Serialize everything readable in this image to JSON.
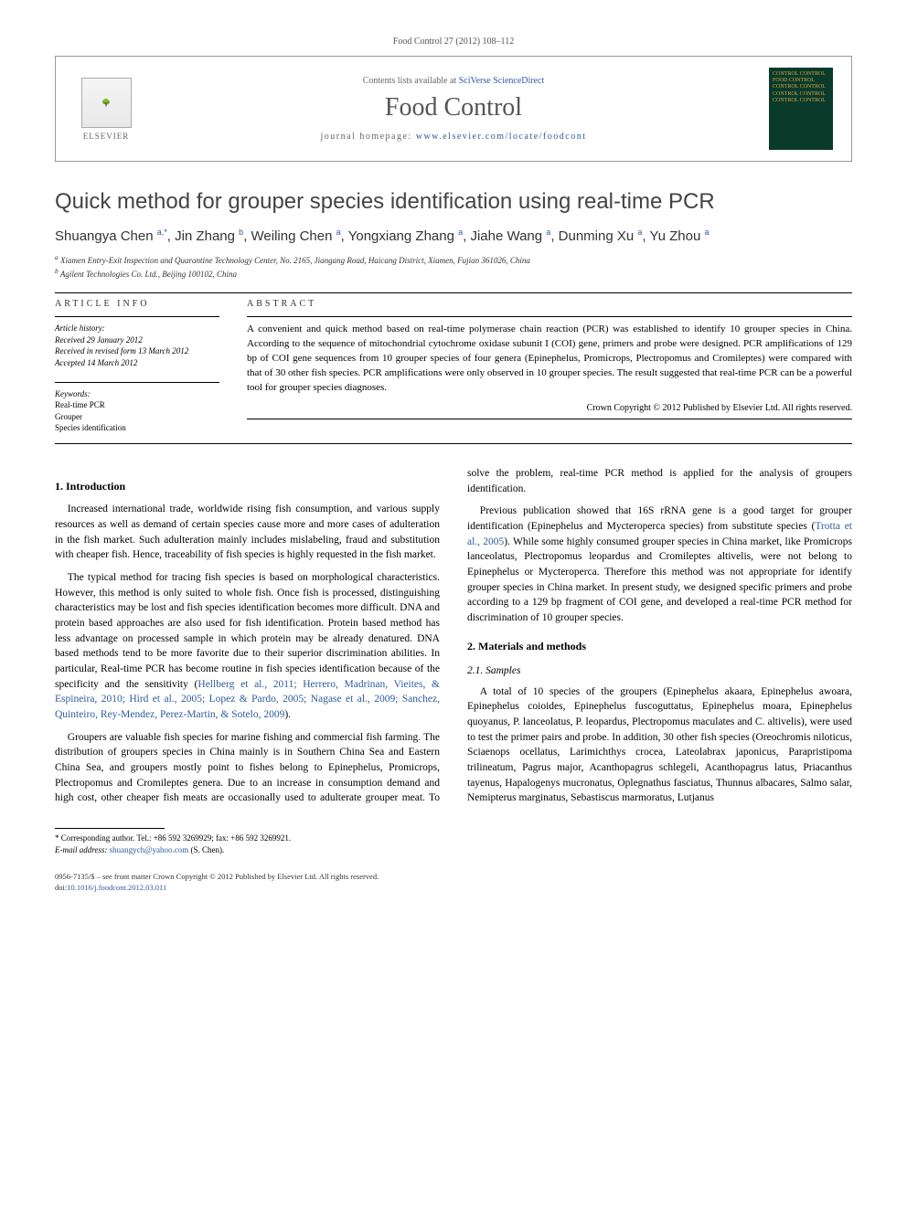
{
  "citation": "Food Control 27 (2012) 108–112",
  "header": {
    "contents_prefix": "Contents lists available at ",
    "contents_link": "SciVerse ScienceDirect",
    "journal": "Food Control",
    "homepage_prefix": "journal homepage: ",
    "homepage_url": "www.elsevier.com/locate/foodcont",
    "elsevier": "ELSEVIER",
    "cover_text": "CONTROL CONTROL FOOD CONTROL CONTROL CONTROL CONTROL CONTROL CONTROL CONTROL"
  },
  "title": "Quick method for grouper species identification using real-time PCR",
  "authors_html": "Shuangya Chen <sup>a,*</sup>, Jin Zhang <sup>b</sup>, Weiling Chen <sup>a</sup>, Yongxiang Zhang <sup>a</sup>, Jiahe Wang <sup>a</sup>, Dunming Xu <sup>a</sup>, Yu Zhou <sup>a</sup>",
  "affiliations": {
    "a": "Xiamen Entry-Exit Inspection and Quarantine Technology Center, No. 2165, Jiangang Road, Haicang District, Xiamen, Fujian 361026, China",
    "b": "Agilent Technologies Co. Ltd., Beijing 100102, China"
  },
  "info": {
    "label": "ARTICLE INFO",
    "history_head": "Article history:",
    "received": "Received 29 January 2012",
    "revised": "Received in revised form 13 March 2012",
    "accepted": "Accepted 14 March 2012",
    "kw_head": "Keywords:",
    "kw1": "Real-time PCR",
    "kw2": "Grouper",
    "kw3": "Species identification"
  },
  "abstract": {
    "label": "ABSTRACT",
    "text": "A convenient and quick method based on real-time polymerase chain reaction (PCR) was established to identify 10 grouper species in China. According to the sequence of mitochondrial cytochrome oxidase subunit I (COI) gene, primers and probe were designed. PCR amplifications of 129 bp of COI gene sequences from 10 grouper species of four genera (Epinephelus, Promicrops, Plectropomus and Cromileptes) were compared with that of 30 other fish species. PCR amplifications were only observed in 10 grouper species. The result suggested that real-time PCR can be a powerful tool for grouper species diagnoses.",
    "copyright": "Crown Copyright © 2012 Published by Elsevier Ltd. All rights reserved."
  },
  "sections": {
    "intro_head": "1. Introduction",
    "intro_p1": "Increased international trade, worldwide rising fish consumption, and various supply resources as well as demand of certain species cause more and more cases of adulteration in the fish market. Such adulteration mainly includes mislabeling, fraud and substitution with cheaper fish. Hence, traceability of fish species is highly requested in the fish market.",
    "intro_p2a": "The typical method for tracing fish species is based on morphological characteristics. However, this method is only suited to whole fish. Once fish is processed, distinguishing characteristics may be lost and fish species identification becomes more difficult. DNA and protein based approaches are also used for fish identification. Protein based method has less advantage on processed sample in which protein may be already denatured. DNA based methods tend to be more favorite due to their superior discrimination abilities. In particular, Real-time PCR has become routine in fish species identification because of the specificity and the sensitivity (",
    "intro_p2_refs": "Hellberg et al., 2011; Herrero, Madrinan, Vieites, & Espineira, 2010; Hird et al., 2005; Lopez & Pardo, 2005; Nagase et al., 2009; Sanchez, Quinteiro, Rey-Mendez, Perez-Martin, & Sotelo, 2009",
    "intro_p2b": ").",
    "intro_p3": "Groupers are valuable fish species for marine fishing and commercial fish farming. The distribution of groupers species in China mainly is in Southern China Sea and Eastern China Sea, and groupers mostly point to fishes belong to Epinephelus, Promicrops, Plectropomus and Cromileptes genera. Due to an increase in consumption demand and high cost, other cheaper fish meats are occasionally used to adulterate grouper meat. To solve the problem, real-time PCR method is applied for the analysis of groupers identification.",
    "intro_p4a": "Previous publication showed that 16S rRNA gene is a good target for grouper identification (Epinephelus and Mycteroperca species) from substitute species (",
    "intro_p4_ref": "Trotta et al., 2005",
    "intro_p4b": "). While some highly consumed grouper species in China market, like Promicrops lanceolatus, Plectropomus leopardus and Cromileptes altivelis, were not belong to Epinephelus or Mycteroperca. Therefore this method was not appropriate for identify grouper species in China market. In present study, we designed specific primers and probe according to a 129 bp fragment of COI gene, and developed a real-time PCR method for discrimination of 10 grouper species.",
    "mm_head": "2. Materials and methods",
    "samples_head": "2.1. Samples",
    "samples_p": "A total of 10 species of the groupers (Epinephelus akaara, Epinephelus awoara, Epinephelus coioides, Epinephelus fuscoguttatus, Epinephelus moara, Epinephelus quoyanus, P. lanceolatus, P. leopardus, Plectropomus maculates and C. altivelis), were used to test the primer pairs and probe. In addition, 30 other fish species (Oreochromis niloticus, Sciaenops ocellatus, Larimichthys crocea, Lateolabrax japonicus, Parapristipoma trilineatum, Pagrus major, Acanthopagrus schlegeli, Acanthopagrus latus, Priacanthus tayenus, Hapalogenys mucronatus, Oplegnathus fasciatus, Thunnus albacares, Salmo salar, Nemipterus marginatus, Sebastiscus marmoratus, Lutjanus"
  },
  "corresponding": {
    "line1": "* Corresponding author. Tel.: +86 592 3269929; fax: +86 592 3269921.",
    "line2_prefix": "E-mail address: ",
    "email": "shuangych@yahoo.com",
    "line2_suffix": " (S. Chen)."
  },
  "bottom": {
    "issn": "0956-7135/$ – see front matter Crown Copyright © 2012 Published by Elsevier Ltd. All rights reserved.",
    "doi_prefix": "doi:",
    "doi": "10.1016/j.foodcont.2012.03.011"
  },
  "colors": {
    "link": "#2e5c9e",
    "text": "#000000",
    "bg": "#ffffff"
  }
}
